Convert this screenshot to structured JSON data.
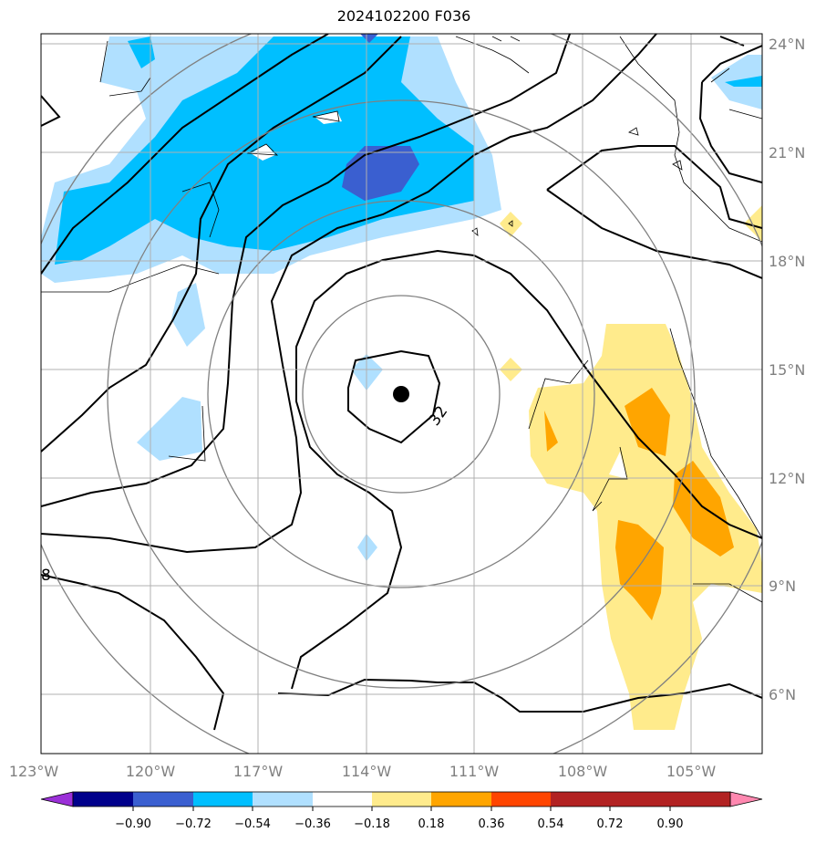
{
  "map": {
    "title": "2024102200 F036",
    "lon_labels": [
      "123°W",
      "120°W",
      "117°W",
      "114°W",
      "111°W",
      "108°W",
      "105°W"
    ],
    "lat_labels": [
      "24°N",
      "21°N",
      "18°N",
      "15°N",
      "12°N",
      "9°N",
      "6°N"
    ],
    "contour_labels": [
      "32",
      "8"
    ],
    "colorbar": {
      "tick_labels": [
        "−0.90",
        "−0.72",
        "−0.54",
        "−0.36",
        "−0.18",
        "0.18",
        "0.36",
        "0.54",
        "0.72",
        "0.90"
      ],
      "colors": [
        "#9b30d8",
        "#00008b",
        "#3a5fd0",
        "#00bfff",
        "#b0e0ff",
        "#ffffff",
        "#ffeb8c",
        "#ffa500",
        "#ff4500",
        "#b22222",
        "#ff88b0"
      ]
    },
    "fill_colors": {
      "neg_light": "#b0e0ff",
      "neg_mid": "#00bfff",
      "neg_strong": "#3a5fd0",
      "neg_extreme": "#9b30d8",
      "pos_light": "#ffeb8c",
      "pos_mid": "#ffa500"
    },
    "center_marker": "storm-center-dot"
  }
}
